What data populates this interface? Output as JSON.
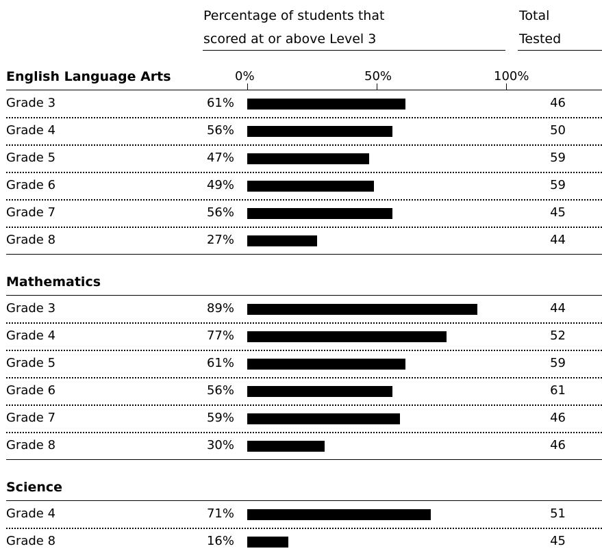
{
  "chart_data": {
    "type": "bar",
    "orientation": "horizontal",
    "header": {
      "percent_title_line1": "Percentage of students that",
      "percent_title_line2": "scored at or above Level 3",
      "total_title_line1": "Total",
      "total_title_line2": "Tested"
    },
    "ticks": [
      "0%",
      "50%",
      "100%"
    ],
    "xlim": [
      0,
      100
    ],
    "sections": [
      {
        "title": "English Language Arts",
        "rows": [
          {
            "label": "Grade 3",
            "value": 61,
            "value_label": "61%",
            "total": "46"
          },
          {
            "label": "Grade 4",
            "value": 56,
            "value_label": "56%",
            "total": "50"
          },
          {
            "label": "Grade 5",
            "value": 47,
            "value_label": "47%",
            "total": "59"
          },
          {
            "label": "Grade 6",
            "value": 49,
            "value_label": "49%",
            "total": "59"
          },
          {
            "label": "Grade 7",
            "value": 56,
            "value_label": "56%",
            "total": "45"
          },
          {
            "label": "Grade 8",
            "value": 27,
            "value_label": "27%",
            "total": "44"
          }
        ]
      },
      {
        "title": "Mathematics",
        "rows": [
          {
            "label": "Grade 3",
            "value": 89,
            "value_label": "89%",
            "total": "44"
          },
          {
            "label": "Grade 4",
            "value": 77,
            "value_label": "77%",
            "total": "52"
          },
          {
            "label": "Grade 5",
            "value": 61,
            "value_label": "61%",
            "total": "59"
          },
          {
            "label": "Grade 6",
            "value": 56,
            "value_label": "56%",
            "total": "61"
          },
          {
            "label": "Grade 7",
            "value": 59,
            "value_label": "59%",
            "total": "46"
          },
          {
            "label": "Grade 8",
            "value": 30,
            "value_label": "30%",
            "total": "46"
          }
        ]
      },
      {
        "title": "Science",
        "rows": [
          {
            "label": "Grade 4",
            "value": 71,
            "value_label": "71%",
            "total": "51"
          },
          {
            "label": "Grade 8",
            "value": 16,
            "value_label": "16%",
            "total": "45"
          }
        ]
      }
    ],
    "colors": {
      "bar": "#000000"
    }
  }
}
